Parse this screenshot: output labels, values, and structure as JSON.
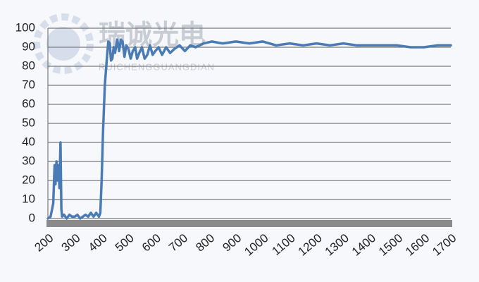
{
  "chart_data": {
    "type": "line",
    "watermark": "瑞诚光电",
    "watermark_subtitle": "RUICHENGGUANGDIAN",
    "x": [
      200,
      210,
      220,
      225,
      228,
      232,
      235,
      240,
      243,
      247,
      250,
      253,
      260,
      270,
      280,
      290,
      300,
      310,
      320,
      330,
      340,
      350,
      360,
      370,
      380,
      385,
      390,
      395,
      400,
      405,
      412,
      420,
      425,
      430,
      435,
      440,
      445,
      450,
      458,
      465,
      472,
      478,
      485,
      492,
      500,
      508,
      516,
      525,
      532,
      540,
      550,
      560,
      570,
      580,
      590,
      600,
      612,
      625,
      640,
      655,
      670,
      690,
      710,
      730,
      750,
      780,
      810,
      850,
      900,
      950,
      1000,
      1050,
      1100,
      1150,
      1200,
      1250,
      1300,
      1350,
      1400,
      1500,
      1550,
      1600,
      1650,
      1700
    ],
    "series": [
      {
        "color": "#4a7bb5",
        "values": [
          0,
          1,
          8,
          28,
          18,
          30,
          20,
          28,
          16,
          40,
          5,
          1,
          2,
          0,
          2,
          1,
          1,
          2,
          0,
          1,
          2,
          1,
          3,
          1,
          3,
          2,
          1,
          3,
          20,
          45,
          70,
          85,
          93,
          92,
          83,
          84,
          90,
          87,
          94,
          88,
          94,
          93,
          85,
          91,
          89,
          84,
          88,
          90,
          84,
          87,
          90,
          84,
          86,
          91,
          86,
          88,
          90,
          86,
          90,
          87,
          89,
          91,
          88,
          91,
          90,
          92,
          93,
          92,
          93,
          92,
          93,
          91,
          92,
          91,
          92,
          91,
          92,
          91,
          91,
          91,
          90,
          90,
          91,
          91
        ]
      }
    ],
    "xlim": [
      200,
      1700
    ],
    "xticks": [
      200,
      300,
      400,
      500,
      600,
      700,
      800,
      900,
      1000,
      1100,
      1200,
      1300,
      1400,
      1500,
      1600,
      1700
    ],
    "ylim": [
      0,
      100
    ],
    "yticks": [
      0,
      10,
      20,
      30,
      40,
      50,
      60,
      70,
      80,
      90,
      100
    ],
    "grid": true
  }
}
